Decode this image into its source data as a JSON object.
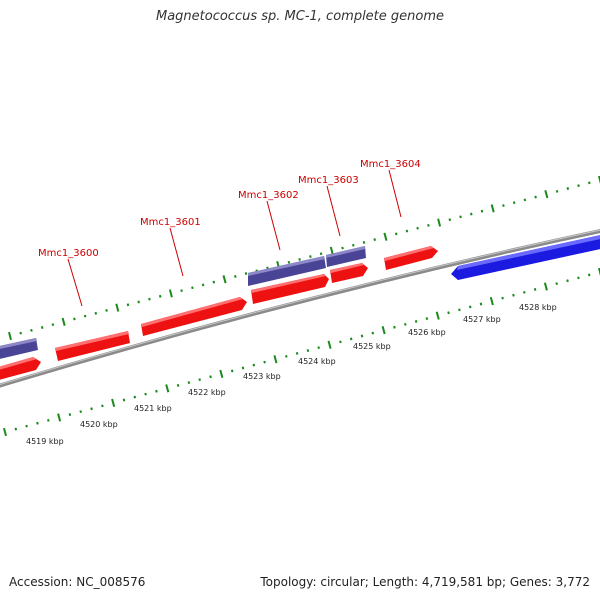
{
  "title": "Magnetococcus sp. MC-1, complete genome",
  "footer": {
    "accession": "Accession: NC_008576",
    "summary": "Topology: circular; Length: 4,719,581 bp; Genes: 3,772"
  },
  "colors": {
    "forward_gene": "#ee1111",
    "reverse_gene": "#4a4496",
    "blue_gene": "#1a1ae0",
    "backbone": "#8a8a8a",
    "ticks": "#1a8a1a",
    "label": "#cc0000"
  },
  "genes": [
    {
      "name": "Mmc1_3600",
      "labeled": true
    },
    {
      "name": "Mmc1_3601",
      "labeled": true
    },
    {
      "name": "Mmc1_3602",
      "labeled": true
    },
    {
      "name": "Mmc1_3603",
      "labeled": true
    },
    {
      "name": "Mmc1_3604",
      "labeled": true
    }
  ],
  "scale_labels": [
    "4519 kbp",
    "4520 kbp",
    "4521 kbp",
    "4522 kbp",
    "4523 kbp",
    "4524 kbp",
    "4525 kbp",
    "4526 kbp",
    "4527 kbp",
    "4528 kbp"
  ]
}
